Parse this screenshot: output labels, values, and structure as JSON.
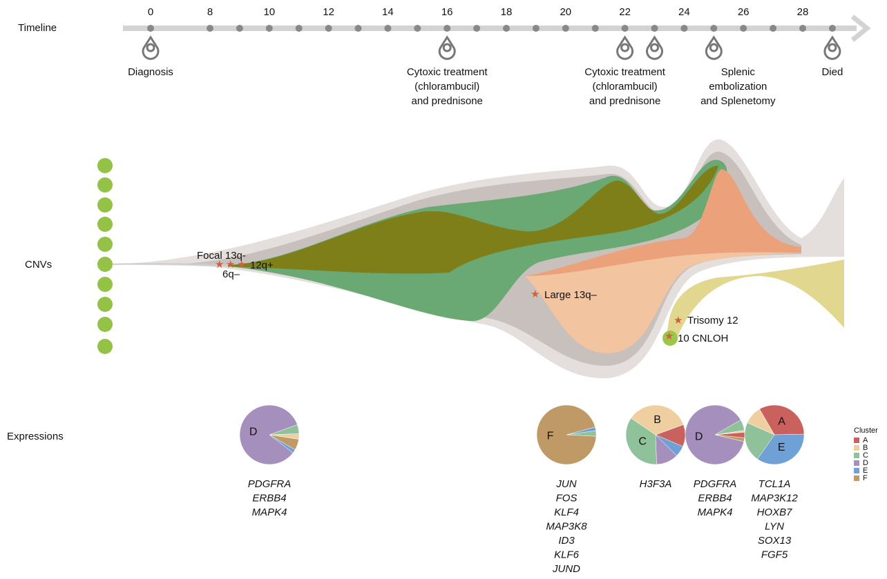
{
  "row_labels": {
    "timeline": "Timeline",
    "cnvs": "CNVs",
    "expressions": "Expressions"
  },
  "timeline": {
    "tick_labels": [
      0,
      8,
      10,
      12,
      14,
      16,
      18,
      20,
      22,
      24,
      26,
      28
    ],
    "months": [
      0,
      8,
      9,
      10,
      11,
      12,
      13,
      14,
      15,
      16,
      17,
      18,
      19,
      20,
      21,
      22,
      23,
      24,
      25,
      26,
      27,
      28,
      29
    ],
    "events": [
      {
        "month": 0,
        "label": [
          "Diagnosis"
        ]
      },
      {
        "month": 16,
        "label": [
          "Cytoxic treatment",
          "(chlorambucil)",
          "and prednisone"
        ]
      },
      {
        "month": 22,
        "label": [
          "Cytoxic treatment",
          "(chlorambucil)",
          "and prednisone"
        ]
      },
      {
        "month": 23
      },
      {
        "month": 25,
        "label": [
          "Splenic",
          "embolization",
          "and Splenetomy"
        ]
      },
      {
        "month": 29,
        "label": [
          "Died"
        ]
      }
    ]
  },
  "cnvs": {
    "annotations": [
      "Focal 13q-",
      "6q–",
      "12q+",
      "Large 13q–",
      "Trisomy 12",
      "10 CNLOH"
    ]
  },
  "expressions": {
    "legend_title": "Cluster",
    "clusters": [
      {
        "name": "A",
        "color": "#c9625f"
      },
      {
        "name": "B",
        "color": "#efcf9f"
      },
      {
        "name": "C",
        "color": "#8fc19b"
      },
      {
        "name": "D",
        "color": "#a58fbd"
      },
      {
        "name": "E",
        "color": "#6fa0d6"
      },
      {
        "name": "F",
        "color": "#bf9a66"
      }
    ],
    "pies": [
      {
        "slices": [
          {
            "cluster": "C",
            "value": 5
          },
          {
            "cluster": "B",
            "value": 3
          },
          {
            "cluster": "F",
            "value": 6
          },
          {
            "cluster": "E",
            "value": 2
          },
          {
            "cluster": "D",
            "value": 84,
            "label": "D"
          }
        ],
        "genes": [
          "PDGFRA",
          "ERBB4",
          "MAPK4"
        ]
      },
      {
        "slices": [
          {
            "cluster": "E",
            "value": 2
          },
          {
            "cluster": "C",
            "value": 3
          },
          {
            "cluster": "F",
            "value": 95,
            "label": "F"
          }
        ],
        "genes": [
          "JUN",
          "FOS",
          "KLF4",
          "MAP3K8",
          "ID3",
          "KLF6",
          "JUND"
        ]
      },
      {
        "slices": [
          {
            "cluster": "A",
            "value": 12
          },
          {
            "cluster": "E",
            "value": 6
          },
          {
            "cluster": "D",
            "value": 12
          },
          {
            "cluster": "C",
            "value": 35,
            "label": "C"
          },
          {
            "cluster": "B",
            "value": 35,
            "label": "B"
          }
        ],
        "genes": [
          "H3F3A"
        ]
      },
      {
        "slices": [
          {
            "cluster": "C",
            "value": 6
          },
          {
            "cluster": "B",
            "value": 1
          },
          {
            "cluster": "A",
            "value": 3
          },
          {
            "cluster": "F",
            "value": 2
          },
          {
            "cluster": "D",
            "value": 88,
            "label": "D"
          }
        ],
        "genes": [
          "PDGFRA",
          "ERBB4",
          "MAPK4"
        ]
      },
      {
        "slices": [
          {
            "cluster": "A",
            "value": 33,
            "label": "A"
          },
          {
            "cluster": "E",
            "value": 35,
            "label": "E"
          },
          {
            "cluster": "C",
            "value": 22
          },
          {
            "cluster": "B",
            "value": 10
          }
        ],
        "genes": [
          "TCL1A",
          "MAP3K12",
          "HOXB7",
          "LYN",
          "SOX13",
          "FGF5"
        ]
      }
    ]
  }
}
